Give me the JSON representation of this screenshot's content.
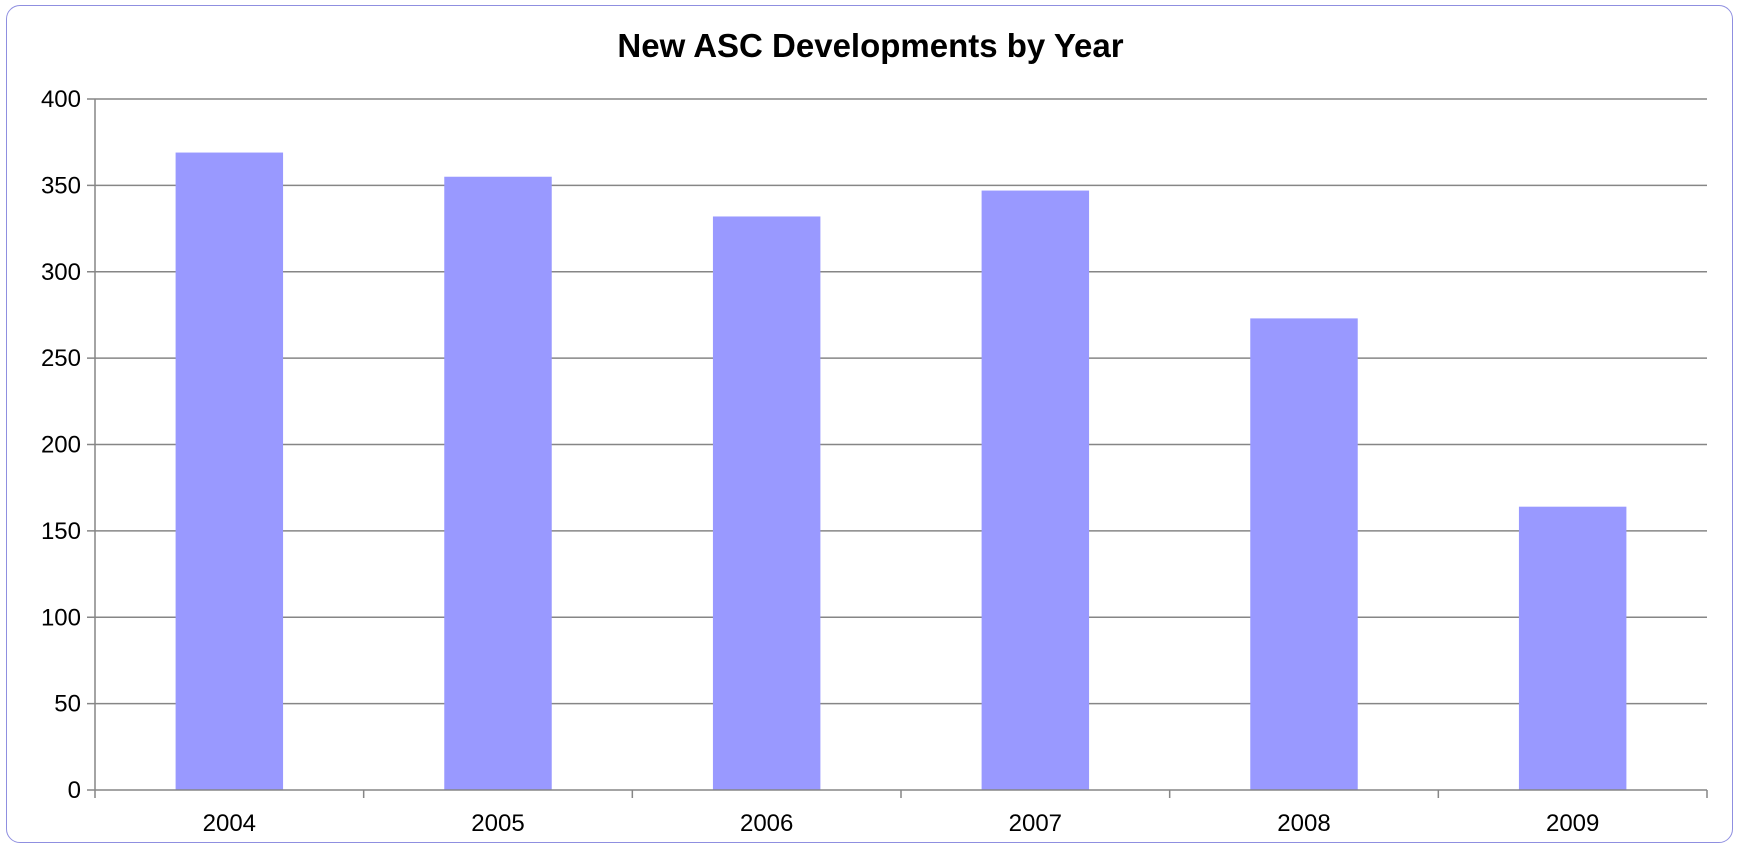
{
  "chart_data": {
    "type": "bar",
    "title": "New ASC Developments by Year",
    "xlabel": "",
    "ylabel": "",
    "categories": [
      "2004",
      "2005",
      "2006",
      "2007",
      "2008",
      "2009"
    ],
    "values": [
      369,
      355,
      332,
      347,
      273,
      164
    ],
    "ylim": [
      0,
      400
    ],
    "yticks": [
      0,
      50,
      100,
      150,
      200,
      250,
      300,
      350,
      400
    ],
    "grid": true,
    "legend": "none",
    "colors": {
      "bar": "#9999ff",
      "gridline": "#868686",
      "axis": "#868686",
      "frame_border": "#8f8fe0"
    }
  }
}
